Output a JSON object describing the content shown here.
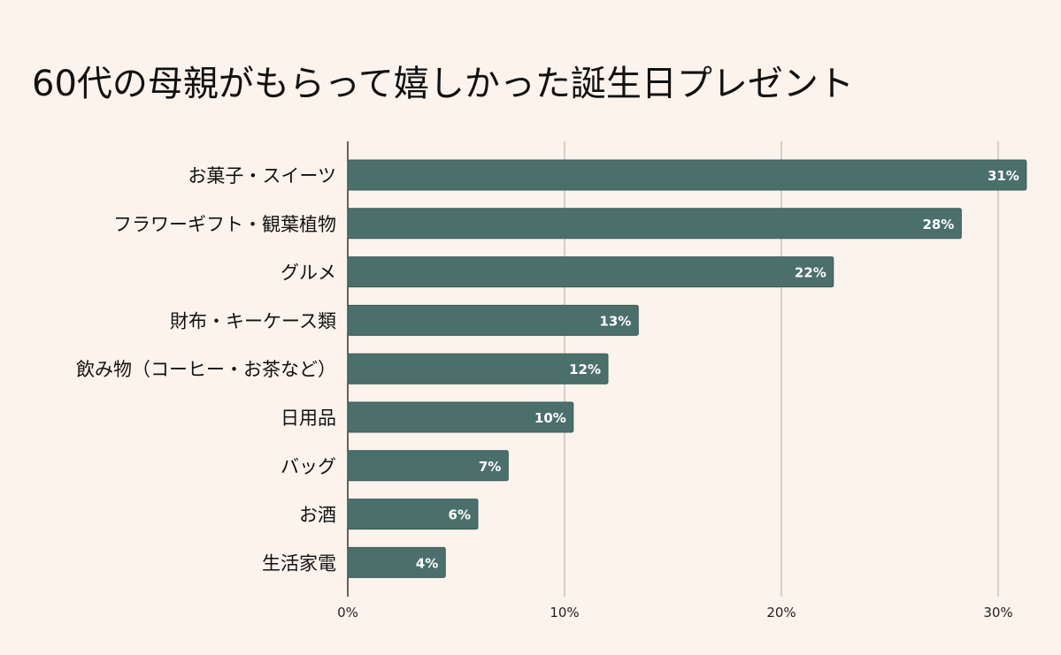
{
  "chart_data": {
    "type": "bar",
    "orientation": "horizontal",
    "title": "60代の母親がもらって嬉しかった誕生日プレゼント",
    "categories": [
      "お菓子・スイーツ",
      "フラワーギフト・観葉植物",
      "グルメ",
      "財布・キーケース類",
      "飲み物（コーヒー・お茶など）",
      "日用品",
      "バッグ",
      "お酒",
      "生活家電"
    ],
    "values": [
      31.3,
      28.3,
      22.4,
      13.4,
      12.0,
      10.4,
      7.4,
      6.0,
      4.5
    ],
    "data_labels": [
      "31%",
      "28%",
      "22%",
      "13%",
      "12%",
      "10%",
      "7%",
      "6%",
      "4%"
    ],
    "xlim": [
      0,
      32
    ],
    "x_ticks": [
      0,
      10,
      20,
      30
    ],
    "x_tick_labels": [
      "0%",
      "10%",
      "20%",
      "30%"
    ],
    "grid": true,
    "bar_color": "#4b6f6b",
    "background": "#fcf3ed"
  }
}
